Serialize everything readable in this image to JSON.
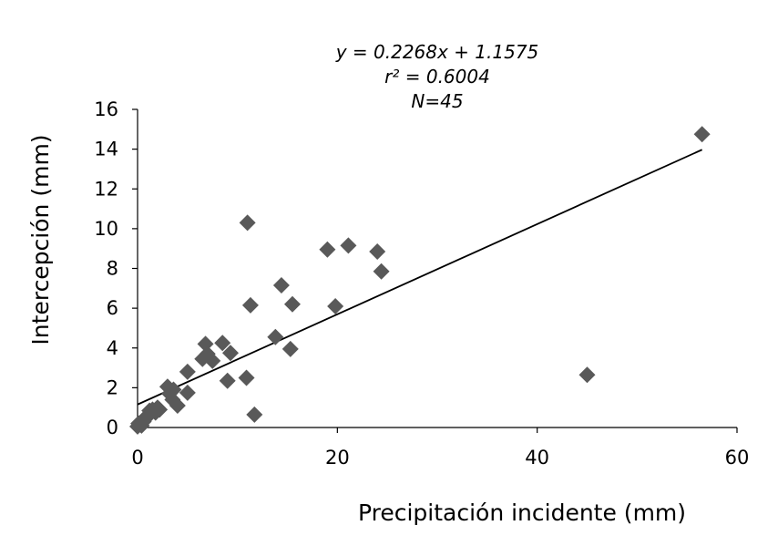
{
  "chart_data": {
    "type": "scatter",
    "title": "",
    "xlabel": "Precipitación incidente (mm)",
    "ylabel": "Intercepción (mm)",
    "xlim": [
      0,
      60
    ],
    "ylim": [
      0,
      16
    ],
    "x_ticks": [
      "0",
      "20",
      "40",
      "60"
    ],
    "y_ticks": [
      "0",
      "2",
      "4",
      "6",
      "8",
      "10",
      "12",
      "14",
      "16"
    ],
    "grid": false,
    "legend": "none",
    "annotations": [
      "y = 0.2268x + 1.1575",
      "r² = 0.6004",
      "N=45"
    ],
    "trendline": {
      "slope": 0.2268,
      "intercept": 1.1575,
      "x_range": [
        0,
        56.5
      ]
    },
    "colors": {
      "marker": "#595959",
      "trendline": "#000000",
      "axis": "#000000"
    },
    "series": [
      {
        "x": [
          0,
          0.2,
          0.3,
          0.4,
          0.5,
          0.6,
          0.8,
          1.0,
          1.2,
          1.5,
          1.8,
          2.2,
          3.0,
          3.2,
          3.5,
          4.0,
          5.0,
          5.0,
          6.5,
          6.8,
          7.0,
          7.5,
          8.5,
          9.0,
          9.3,
          10.9,
          11.0,
          11.3,
          11.7,
          13.8,
          14.4,
          15.3,
          15.5,
          19.0,
          19.8,
          21.1,
          24.0,
          24.4,
          45.0,
          56.5,
          0.1,
          0.7,
          1.3,
          2.0,
          3.6
        ],
        "y": [
          0.05,
          0.15,
          0.25,
          0.1,
          0.35,
          0.3,
          0.5,
          0.6,
          0.85,
          0.9,
          0.75,
          0.9,
          2.05,
          1.7,
          1.4,
          1.1,
          2.8,
          1.75,
          3.45,
          4.2,
          3.7,
          3.35,
          4.25,
          2.35,
          3.75,
          2.5,
          10.3,
          6.15,
          0.65,
          4.55,
          7.15,
          3.95,
          6.2,
          8.95,
          6.1,
          9.15,
          8.85,
          7.85,
          2.65,
          14.75,
          0.2,
          0.4,
          0.7,
          1.0,
          1.9
        ]
      }
    ]
  }
}
